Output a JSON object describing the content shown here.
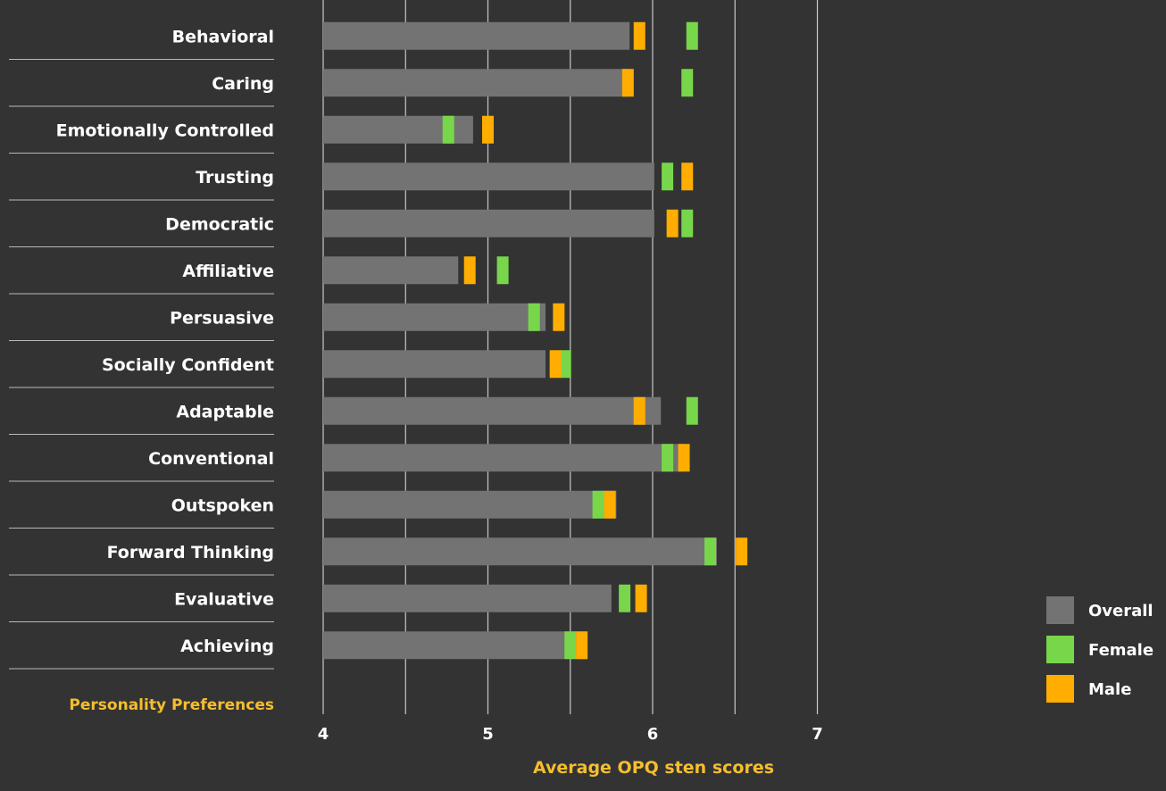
{
  "chart_data": {
    "type": "bar",
    "orientation": "horizontal",
    "xlabel": "Average OPQ sten scores",
    "ylabel": "Personality Preferences",
    "xlim": [
      4,
      7
    ],
    "xticks": [
      "4",
      "5",
      "6",
      "7"
    ],
    "grid": true,
    "legend_position": "right",
    "categories": [
      "Behavioral",
      "Caring",
      "Emotionally Controlled",
      "Trusting",
      "Democratic",
      "Affiliative",
      "Persuasive",
      "Socially Confident",
      "Adaptable",
      "Conventional",
      "Outspoken",
      "Forward Thinking",
      "Evaluative",
      "Achieving"
    ],
    "series": [
      {
        "name": "Overall",
        "color": "#737373",
        "values": [
          5.86,
          5.86,
          4.91,
          6.01,
          6.01,
          4.82,
          5.35,
          5.35,
          6.05,
          6.19,
          5.78,
          6.39,
          5.75,
          5.6
        ]
      },
      {
        "name": "Female",
        "color": "#78d64b",
        "values": [
          6.24,
          6.21,
          4.76,
          6.09,
          6.21,
          5.09,
          5.28,
          5.47,
          6.24,
          6.09,
          5.67,
          6.35,
          5.83,
          5.5
        ]
      },
      {
        "name": "Male",
        "color": "#ffad00",
        "values": [
          5.92,
          5.85,
          5.0,
          6.21,
          6.12,
          4.89,
          5.43,
          5.41,
          5.92,
          6.19,
          5.74,
          6.54,
          5.93,
          5.57
        ]
      }
    ]
  }
}
